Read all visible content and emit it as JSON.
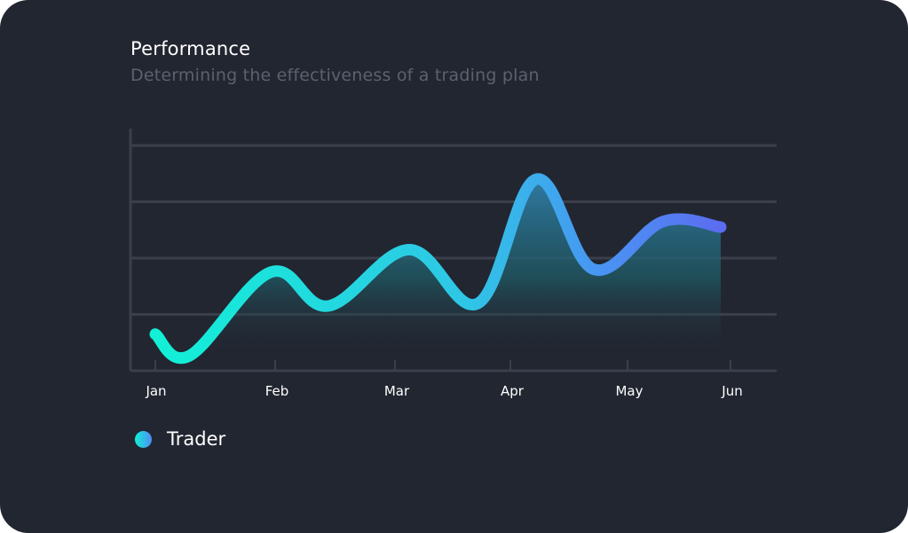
{
  "card": {
    "title": "Performance",
    "subtitle": "Determining the effectiveness of a trading plan"
  },
  "colors": {
    "background": "#222631",
    "grid": "#3a3f4b",
    "line_start": "#12f0d6",
    "line_mid": "#36b8e8",
    "line_end": "#5b6cf0",
    "title": "#ffffff",
    "subtitle": "#5c616e"
  },
  "chart_data": {
    "type": "area",
    "categories": [
      "Jan",
      "Feb",
      "Mar",
      "Apr",
      "May",
      "Jun"
    ],
    "x": [
      0,
      0.3,
      1,
      1.5,
      2.2,
      2.8,
      3.3,
      3.8,
      4.4,
      4.9
    ],
    "series": [
      {
        "name": "Trader",
        "values": [
          0.65,
          0.27,
          1.75,
          1.15,
          2.15,
          1.2,
          3.4,
          1.8,
          2.65,
          2.55
        ]
      }
    ],
    "ylim": [
      0,
      4.3
    ],
    "grid": true,
    "legend_position": "bottom-left"
  }
}
